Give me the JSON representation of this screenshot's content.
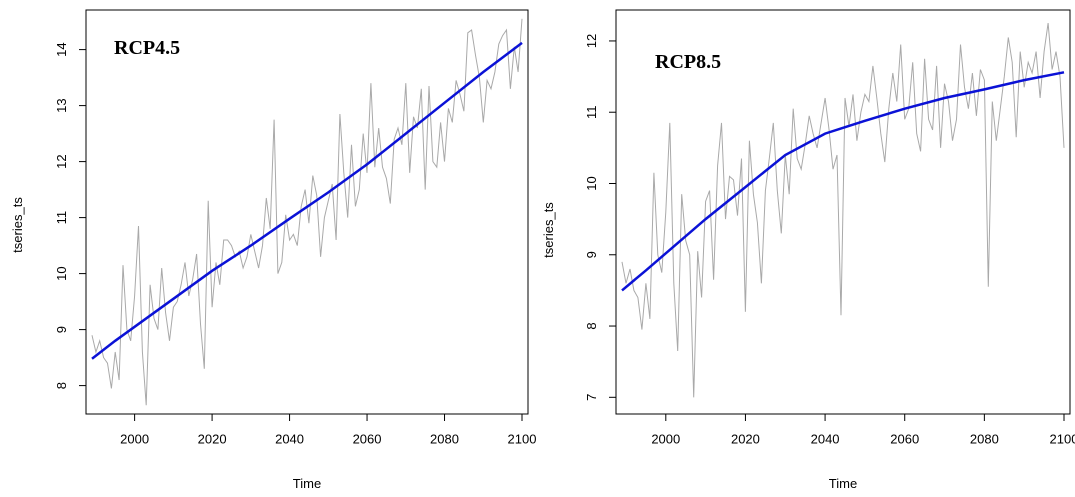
{
  "chart_data": [
    {
      "type": "line",
      "title": "RCP4.5",
      "xlabel": "Time",
      "ylabel": "tseries_ts",
      "xlim": [
        1989,
        2100
      ],
      "ylim": [
        7.6,
        14.6
      ],
      "xticks": [
        2000,
        2020,
        2040,
        2060,
        2080,
        2100
      ],
      "yticks": [
        8,
        9,
        10,
        11,
        12,
        13,
        14
      ],
      "grid": false,
      "series": [
        {
          "role": "raw",
          "color": "#a9a9a9",
          "x": [
            1989,
            1990,
            1991,
            1992,
            1993,
            1994,
            1995,
            1996,
            1997,
            1998,
            1999,
            2000,
            2001,
            2002,
            2003,
            2004,
            2005,
            2006,
            2007,
            2008,
            2009,
            2010,
            2011,
            2012,
            2013,
            2014,
            2015,
            2016,
            2017,
            2018,
            2019,
            2020,
            2021,
            2022,
            2023,
            2024,
            2025,
            2026,
            2027,
            2028,
            2029,
            2030,
            2031,
            2032,
            2033,
            2034,
            2035,
            2036,
            2037,
            2038,
            2039,
            2040,
            2041,
            2042,
            2043,
            2044,
            2045,
            2046,
            2047,
            2048,
            2049,
            2050,
            2051,
            2052,
            2053,
            2054,
            2055,
            2056,
            2057,
            2058,
            2059,
            2060,
            2061,
            2062,
            2063,
            2064,
            2065,
            2066,
            2067,
            2068,
            2069,
            2070,
            2071,
            2072,
            2073,
            2074,
            2075,
            2076,
            2077,
            2078,
            2079,
            2080,
            2081,
            2082,
            2083,
            2084,
            2085,
            2086,
            2087,
            2088,
            2089,
            2090,
            2091,
            2092,
            2093,
            2094,
            2095,
            2096,
            2097,
            2098,
            2099,
            2100
          ],
          "y": [
            8.9,
            8.6,
            8.8,
            8.5,
            8.4,
            7.95,
            8.6,
            8.1,
            10.15,
            9.0,
            8.8,
            9.6,
            10.85,
            8.6,
            7.65,
            9.8,
            9.2,
            9.0,
            10.1,
            9.3,
            8.8,
            9.4,
            9.5,
            9.8,
            10.2,
            9.6,
            9.9,
            10.35,
            9.1,
            8.3,
            11.3,
            9.4,
            10.2,
            9.8,
            10.6,
            10.6,
            10.5,
            10.3,
            10.4,
            10.1,
            10.3,
            10.7,
            10.4,
            10.1,
            10.5,
            11.35,
            10.8,
            12.75,
            10.0,
            10.2,
            11.05,
            10.6,
            10.7,
            10.5,
            11.2,
            11.5,
            10.9,
            11.75,
            11.4,
            10.3,
            11.0,
            11.3,
            11.6,
            10.6,
            12.85,
            11.8,
            11.0,
            12.3,
            11.2,
            11.5,
            12.5,
            11.8,
            13.4,
            11.9,
            12.6,
            11.9,
            11.7,
            11.25,
            12.4,
            12.6,
            12.3,
            13.4,
            11.8,
            12.8,
            12.6,
            13.3,
            11.5,
            13.35,
            12.0,
            11.9,
            12.7,
            12.0,
            12.95,
            12.7,
            13.45,
            13.2,
            12.9,
            14.3,
            14.35,
            13.9,
            13.5,
            12.7,
            13.45,
            13.3,
            13.6,
            14.1,
            14.25,
            14.35,
            13.3,
            14.05,
            13.6,
            14.55
          ]
        },
        {
          "role": "trend",
          "color": "#0b12d6",
          "x": [
            1989,
            1995,
            2000,
            2010,
            2020,
            2030,
            2040,
            2050,
            2060,
            2070,
            2080,
            2090,
            2100
          ],
          "y": [
            8.48,
            8.8,
            9.05,
            9.55,
            10.05,
            10.5,
            10.98,
            11.45,
            11.95,
            12.5,
            13.05,
            13.6,
            14.12
          ]
        }
      ]
    },
    {
      "type": "line",
      "title": "RCP8.5",
      "xlabel": "Time",
      "ylabel": "tseries_ts",
      "xlim": [
        1989,
        2100
      ],
      "ylim": [
        6.85,
        12.35
      ],
      "xticks": [
        2000,
        2020,
        2040,
        2060,
        2080,
        2100
      ],
      "yticks": [
        7,
        8,
        9,
        10,
        11,
        12
      ],
      "grid": false,
      "series": [
        {
          "role": "raw",
          "color": "#a9a9a9",
          "x": [
            1989,
            1990,
            1991,
            1992,
            1993,
            1994,
            1995,
            1996,
            1997,
            1998,
            1999,
            2000,
            2001,
            2002,
            2003,
            2004,
            2005,
            2006,
            2007,
            2008,
            2009,
            2010,
            2011,
            2012,
            2013,
            2014,
            2015,
            2016,
            2017,
            2018,
            2019,
            2020,
            2021,
            2022,
            2023,
            2024,
            2025,
            2026,
            2027,
            2028,
            2029,
            2030,
            2031,
            2032,
            2033,
            2034,
            2035,
            2036,
            2037,
            2038,
            2039,
            2040,
            2041,
            2042,
            2043,
            2044,
            2045,
            2046,
            2047,
            2048,
            2049,
            2050,
            2051,
            2052,
            2053,
            2054,
            2055,
            2056,
            2057,
            2058,
            2059,
            2060,
            2061,
            2062,
            2063,
            2064,
            2065,
            2066,
            2067,
            2068,
            2069,
            2070,
            2071,
            2072,
            2073,
            2074,
            2075,
            2076,
            2077,
            2078,
            2079,
            2080,
            2081,
            2082,
            2083,
            2084,
            2085,
            2086,
            2087,
            2088,
            2089,
            2090,
            2091,
            2092,
            2093,
            2094,
            2095,
            2096,
            2097,
            2098,
            2099,
            2100
          ],
          "y": [
            8.9,
            8.6,
            8.8,
            8.5,
            8.4,
            7.95,
            8.6,
            8.1,
            10.15,
            9.0,
            8.75,
            9.6,
            10.85,
            8.6,
            7.65,
            9.85,
            9.2,
            9.0,
            7.0,
            9.05,
            8.4,
            9.75,
            9.9,
            8.65,
            10.25,
            10.85,
            9.5,
            10.1,
            10.05,
            9.55,
            10.35,
            8.2,
            10.6,
            9.85,
            9.45,
            8.6,
            9.9,
            10.35,
            10.85,
            9.9,
            9.3,
            10.4,
            9.85,
            11.05,
            10.35,
            10.2,
            10.55,
            10.95,
            10.7,
            10.5,
            10.85,
            11.2,
            10.75,
            10.2,
            10.4,
            8.15,
            11.2,
            10.8,
            11.25,
            10.6,
            11.0,
            11.25,
            11.15,
            11.65,
            11.2,
            10.7,
            10.3,
            11.05,
            11.55,
            11.15,
            11.95,
            10.9,
            11.05,
            11.7,
            10.7,
            10.45,
            11.75,
            10.9,
            10.75,
            11.65,
            10.5,
            11.4,
            11.15,
            10.6,
            10.9,
            11.95,
            11.35,
            11.05,
            11.55,
            10.95,
            11.6,
            11.45,
            8.55,
            11.15,
            10.6,
            11.05,
            11.5,
            12.05,
            11.7,
            10.65,
            11.85,
            11.35,
            11.7,
            11.55,
            11.85,
            11.2,
            11.85,
            12.25,
            11.6,
            11.85,
            11.5,
            10.5
          ]
        },
        {
          "role": "trend",
          "color": "#0b12d6",
          "x": [
            1989,
            1995,
            2000,
            2010,
            2020,
            2030,
            2040,
            2050,
            2060,
            2070,
            2080,
            2090,
            2100
          ],
          "y": [
            8.5,
            8.78,
            9.02,
            9.5,
            9.95,
            10.4,
            10.7,
            10.88,
            11.05,
            11.2,
            11.32,
            11.45,
            11.56
          ]
        }
      ]
    }
  ]
}
